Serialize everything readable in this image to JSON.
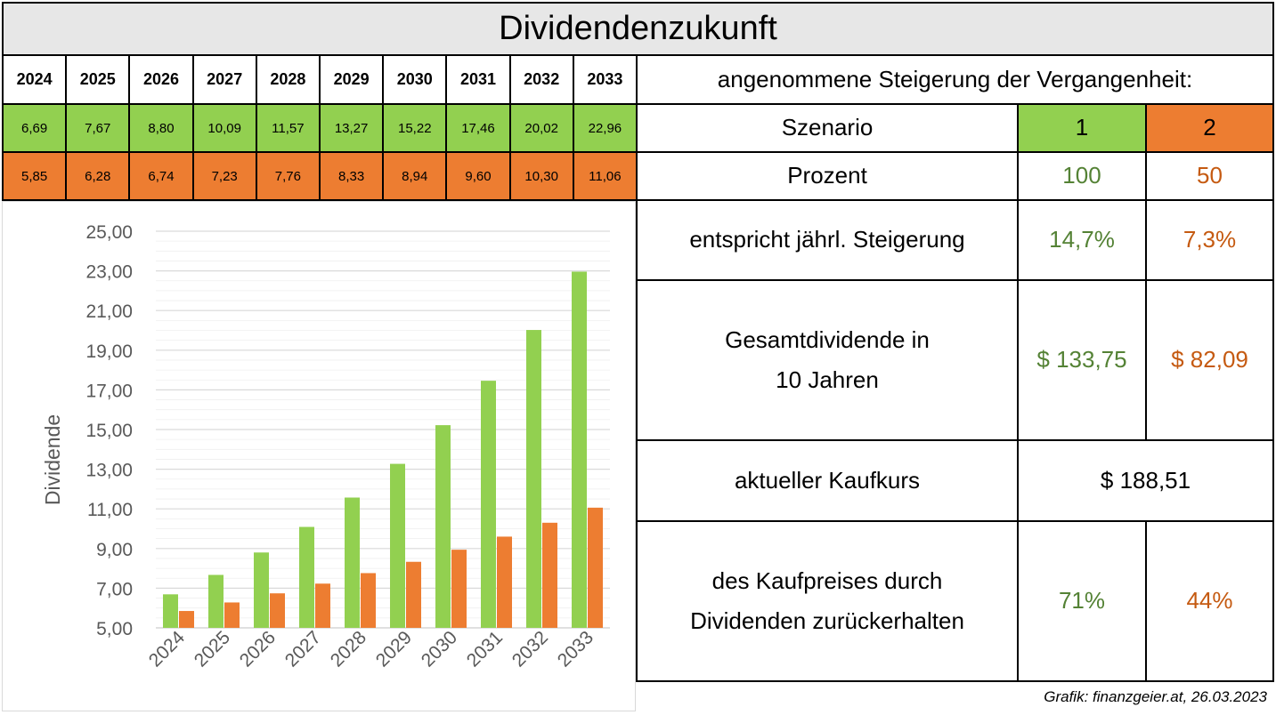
{
  "title": "Dividendenzukunft",
  "years": [
    "2024",
    "2025",
    "2026",
    "2027",
    "2028",
    "2029",
    "2030",
    "2031",
    "2032",
    "2033"
  ],
  "scenario1_values": [
    "6,69",
    "7,67",
    "8,80",
    "10,09",
    "11,57",
    "13,27",
    "15,22",
    "17,46",
    "20,02",
    "22,96"
  ],
  "scenario2_values": [
    "5,85",
    "6,28",
    "6,74",
    "7,23",
    "7,76",
    "8,33",
    "8,94",
    "9,60",
    "10,30",
    "11,06"
  ],
  "info": {
    "header": "angenommene Steigerung der Vergangenheit:",
    "szenario_label": "Szenario",
    "szenario_1": "1",
    "szenario_2": "2",
    "prozent_label": "Prozent",
    "prozent_1": "100",
    "prozent_2": "50",
    "steigerung_label": "entspricht jährl. Steigerung",
    "steigerung_1": "14,7%",
    "steigerung_2": "7,3%",
    "gesamt_label": "Gesamtdividende in 10 Jahren",
    "gesamt_1": "$ 133,75",
    "gesamt_2": "$ 82,09",
    "kaufkurs_label": "aktueller Kaufkurs",
    "kaufkurs_value": "$ 188,51",
    "zurueck_label": "des Kaufpreises durch Dividenden zurückerhalten",
    "zurueck_1": "71%",
    "zurueck_2": "44%"
  },
  "credit": "Grafik: finanzgeier.at, 26.03.2023",
  "colors": {
    "green": "#92d050",
    "orange": "#ed7d31",
    "green_text": "#548235",
    "orange_text": "#c55a11",
    "title_bg": "#e7e7e7"
  },
  "chart_data": {
    "type": "bar",
    "categories": [
      "2024",
      "2025",
      "2026",
      "2027",
      "2028",
      "2029",
      "2030",
      "2031",
      "2032",
      "2033"
    ],
    "series": [
      {
        "values": [
          6.69,
          7.67,
          8.8,
          10.09,
          11.57,
          13.27,
          15.22,
          17.46,
          20.02,
          22.96
        ],
        "color": "#92d050"
      },
      {
        "values": [
          5.85,
          6.28,
          6.74,
          7.23,
          7.76,
          8.33,
          8.94,
          9.6,
          10.3,
          11.06
        ],
        "color": "#ed7d31"
      }
    ],
    "yticks": [
      "5,00",
      "7,00",
      "9,00",
      "11,00",
      "13,00",
      "15,00",
      "17,00",
      "19,00",
      "21,00",
      "23,00",
      "25,00"
    ],
    "ylabel": "Dividende",
    "ylim": [
      5,
      25
    ],
    "grid": true,
    "legend": "none"
  }
}
